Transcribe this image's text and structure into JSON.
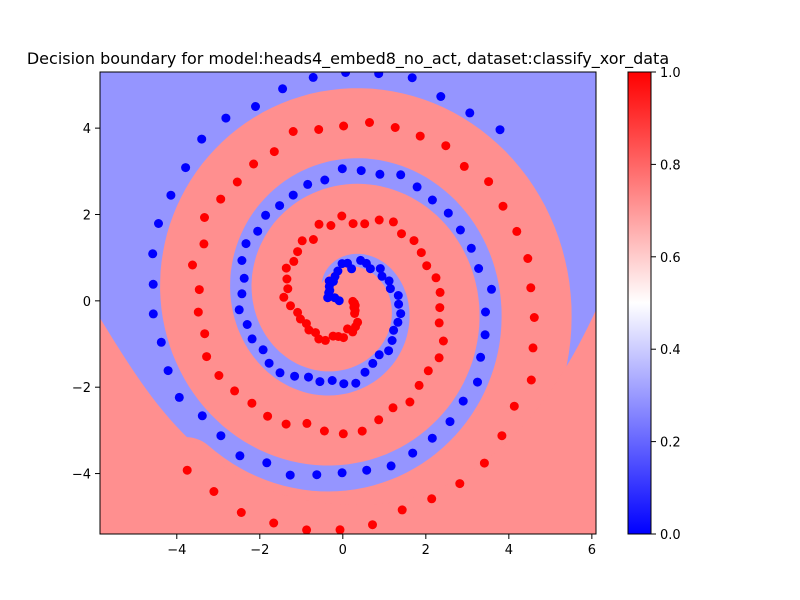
{
  "chart_data": {
    "type": "scatter",
    "title": "Decision boundary for model:heads4_embed8_no_act, dataset:classify_xor_data",
    "xlabel": "",
    "ylabel": "",
    "xlim": [
      -5.85,
      6.1
    ],
    "ylim": [
      -5.4,
      5.3
    ],
    "x_ticks": [
      -4,
      -2,
      0,
      2,
      4,
      6
    ],
    "y_ticks": [
      -4,
      -2,
      0,
      2,
      4
    ],
    "x_tick_labels": [
      "−4",
      "−2",
      "0",
      "2",
      "4",
      "6"
    ],
    "y_tick_labels": [
      "−4",
      "−2",
      "0",
      "2",
      "4"
    ],
    "grid": false,
    "background": "decision regions: blue-ish region predicts ~0.2, red-ish region predicts ~0.8",
    "region_colors": {
      "low": "#9595ff",
      "high": "#ff8f8f"
    },
    "series": [
      {
        "class": 0,
        "color": "#0000ff",
        "points": "two-arm spiral, arm A (≈100 points, r from 0.2 to 5.3)"
      },
      {
        "class": 1,
        "color": "#ff0000",
        "points": "two-arm spiral, arm B (≈100 points, r from 0.2 to 5.3)"
      }
    ],
    "colorbar": {
      "min": 0.0,
      "max": 1.0,
      "ticks": [
        "0.0",
        "0.2",
        "0.4",
        "0.6",
        "0.8",
        "1.0"
      ],
      "colormap": "bwr"
    }
  }
}
